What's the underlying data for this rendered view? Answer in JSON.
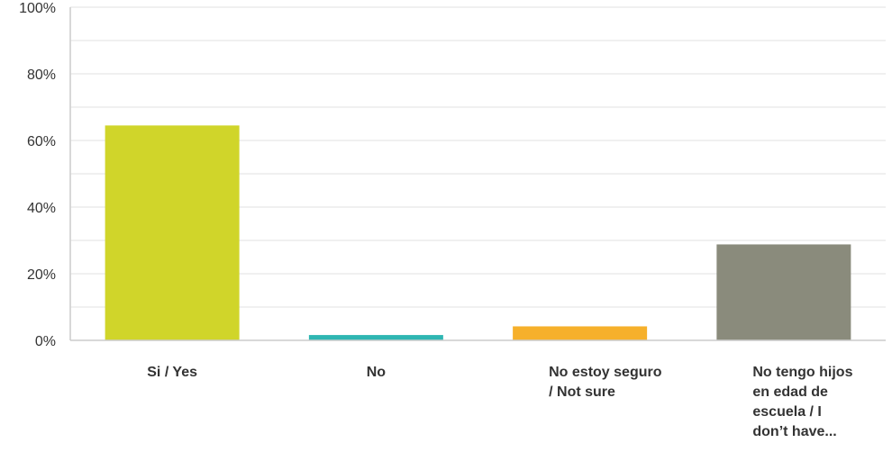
{
  "chart_data": {
    "type": "bar",
    "categories": [
      [
        "Si / Yes"
      ],
      [
        "No"
      ],
      [
        "No estoy seguro",
        "/ Not sure"
      ],
      [
        "No tengo hijos",
        "en edad de",
        "escuela / I",
        "don’t have..."
      ]
    ],
    "values": [
      64.5,
      1.6,
      4.2,
      28.8
    ],
    "colors": [
      "#d0d52a",
      "#2fb6b2",
      "#f6b02b",
      "#8a8b7c"
    ],
    "ylim": [
      0,
      100
    ],
    "yticks": [
      0,
      20,
      40,
      60,
      80,
      100
    ],
    "ytick_format": "%",
    "grid": true,
    "title": "",
    "xlabel": "",
    "ylabel": ""
  }
}
